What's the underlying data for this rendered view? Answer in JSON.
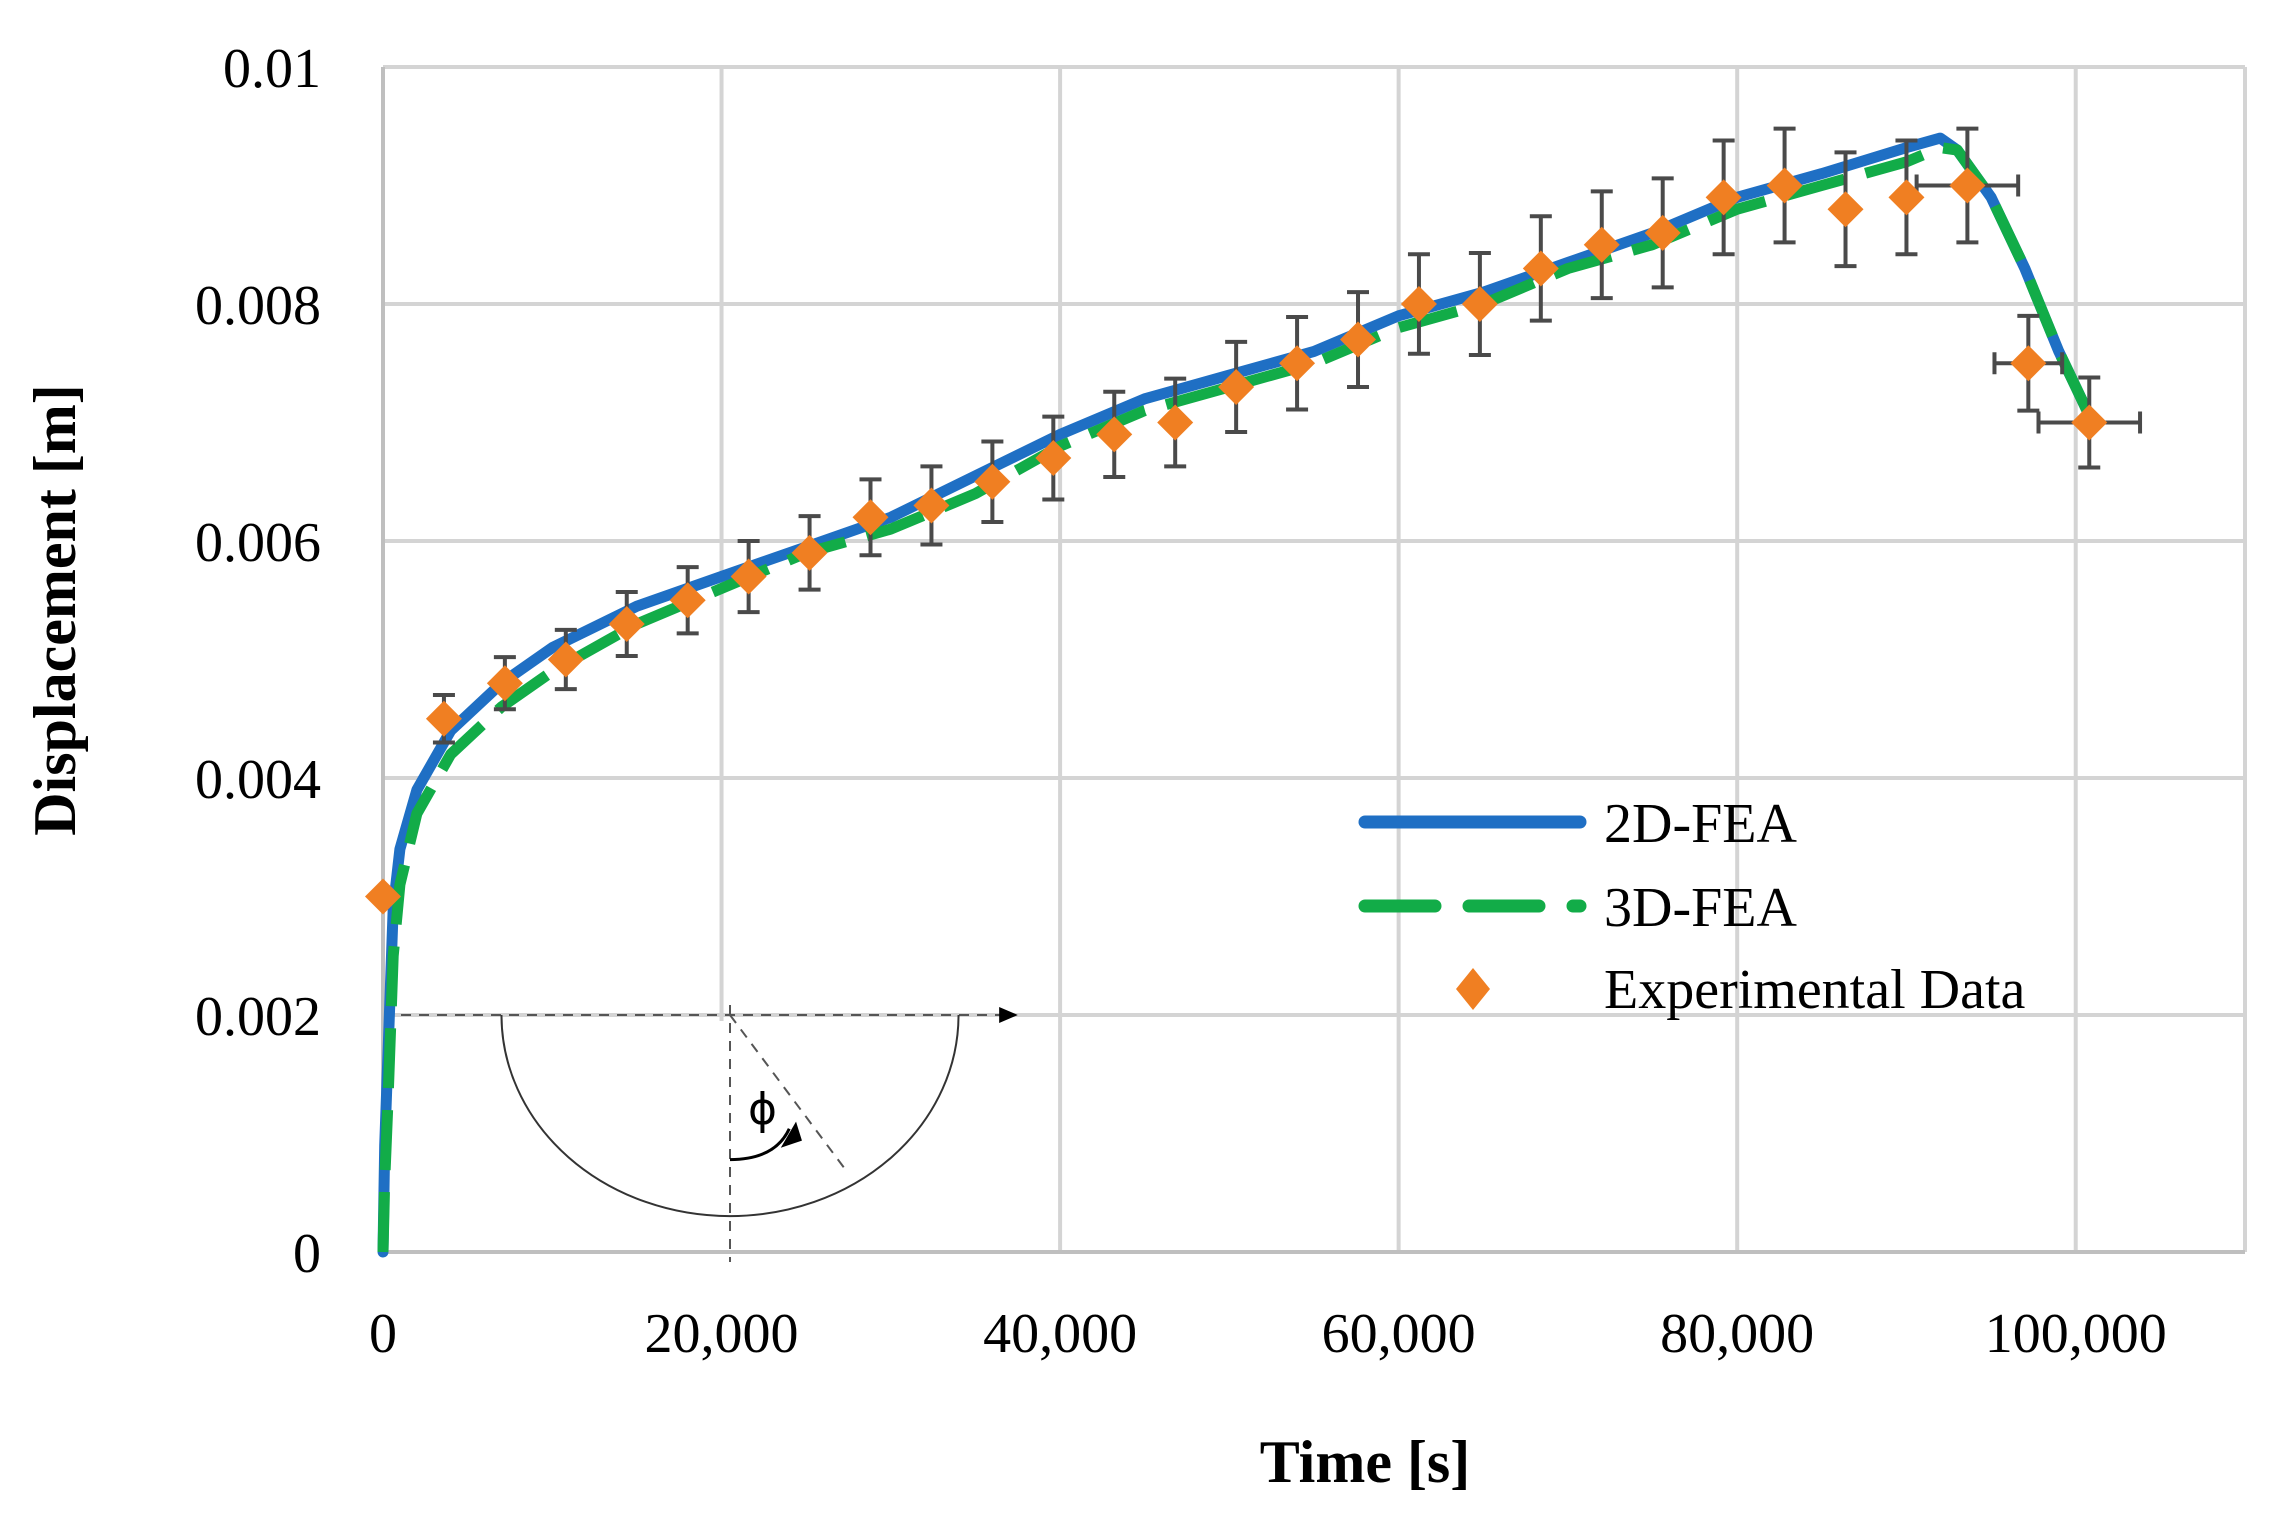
{
  "chart_data": {
    "type": "line",
    "xlabel": "Time [s]",
    "ylabel": "Displacement [m]",
    "xlim": [
      0,
      110000
    ],
    "ylim": [
      0,
      0.01
    ],
    "x_ticks": [
      0,
      20000,
      40000,
      60000,
      80000,
      100000
    ],
    "x_tick_labels": [
      "0",
      "20,000",
      "40,000",
      "60,000",
      "80,000",
      "100,000"
    ],
    "y_ticks": [
      0,
      0.002,
      0.004,
      0.006,
      0.008,
      0.01
    ],
    "y_tick_labels": [
      "0",
      "0.002",
      "0.004",
      "0.006",
      "0.008",
      "0.01"
    ],
    "grid": true,
    "legend_position": "center-right",
    "series": [
      {
        "name": "2D-FEA",
        "style": "solid",
        "color": "#1f6fc4",
        "x": [
          0,
          100,
          300,
          600,
          1000,
          2000,
          4000,
          7000,
          10000,
          15000,
          20000,
          25000,
          30000,
          35000,
          40000,
          45000,
          50000,
          55000,
          60000,
          65000,
          70000,
          75000,
          80000,
          85000,
          90000,
          92000,
          93000,
          95000,
          97000,
          99000,
          101000
        ],
        "y": [
          0,
          0.0009,
          0.0017,
          0.0029,
          0.0034,
          0.0039,
          0.0044,
          0.0048,
          0.0051,
          0.00545,
          0.0057,
          0.00595,
          0.0062,
          0.00655,
          0.0069,
          0.0072,
          0.0074,
          0.0076,
          0.0079,
          0.0081,
          0.00835,
          0.0086,
          0.0089,
          0.0091,
          0.00932,
          0.0094,
          0.0093,
          0.0089,
          0.0083,
          0.0076,
          0.007
        ]
      },
      {
        "name": "3D-FEA",
        "style": "dashed",
        "color": "#12ac48",
        "x": [
          0,
          100,
          300,
          600,
          1000,
          2000,
          4000,
          7000,
          10000,
          15000,
          20000,
          25000,
          30000,
          35000,
          40000,
          45000,
          50000,
          55000,
          60000,
          65000,
          70000,
          75000,
          80000,
          85000,
          90000,
          92000,
          93000,
          95000,
          97000,
          99000,
          101000
        ],
        "y": [
          0,
          0.0006,
          0.0013,
          0.0025,
          0.0031,
          0.0037,
          0.0042,
          0.0046,
          0.0049,
          0.0053,
          0.0056,
          0.0059,
          0.0061,
          0.0064,
          0.0068,
          0.0071,
          0.0073,
          0.0075,
          0.0078,
          0.008,
          0.0083,
          0.0085,
          0.0088,
          0.009,
          0.0092,
          0.00932,
          0.0093,
          0.0089,
          0.0083,
          0.0076,
          0.007
        ]
      },
      {
        "name": "Experimental Data",
        "style": "markers",
        "marker": "diamond",
        "color": "#f07f22",
        "error_bar_color": "#4a4a4a",
        "x": [
          0,
          3600,
          7200,
          10800,
          14400,
          18000,
          21600,
          25200,
          28800,
          32400,
          36000,
          39600,
          43200,
          46800,
          50400,
          54000,
          57600,
          61200,
          64800,
          68400,
          72000,
          75600,
          79200,
          82800,
          86400,
          90000,
          93600,
          97200,
          100800
        ],
        "y": [
          0.003,
          0.0045,
          0.0048,
          0.005,
          0.0053,
          0.0055,
          0.0057,
          0.0059,
          0.0062,
          0.0063,
          0.0065,
          0.0067,
          0.0069,
          0.007,
          0.0073,
          0.0075,
          0.0077,
          0.008,
          0.008,
          0.0083,
          0.0085,
          0.0086,
          0.0089,
          0.009,
          0.0088,
          0.0089,
          0.009,
          0.0075,
          0.007
        ],
        "x_error": [
          0,
          0,
          0,
          0,
          0,
          0,
          0,
          0,
          0,
          0,
          0,
          0,
          0,
          0,
          0,
          0,
          0,
          0,
          0,
          0,
          0,
          0,
          0,
          0,
          0,
          0,
          3000,
          2000,
          3000
        ],
        "y_error": [
          0,
          0.0002,
          0.00022,
          0.00025,
          0.00027,
          0.00028,
          0.0003,
          0.00031,
          0.00032,
          0.00033,
          0.00034,
          0.00035,
          0.00036,
          0.00037,
          0.00038,
          0.00039,
          0.0004,
          0.00042,
          0.00043,
          0.00044,
          0.00045,
          0.00046,
          0.00048,
          0.00048,
          0.00048,
          0.00048,
          0.00048,
          0.0004,
          0.00038
        ]
      }
    ],
    "inset_diagram": {
      "symbol": "ϕ"
    }
  }
}
